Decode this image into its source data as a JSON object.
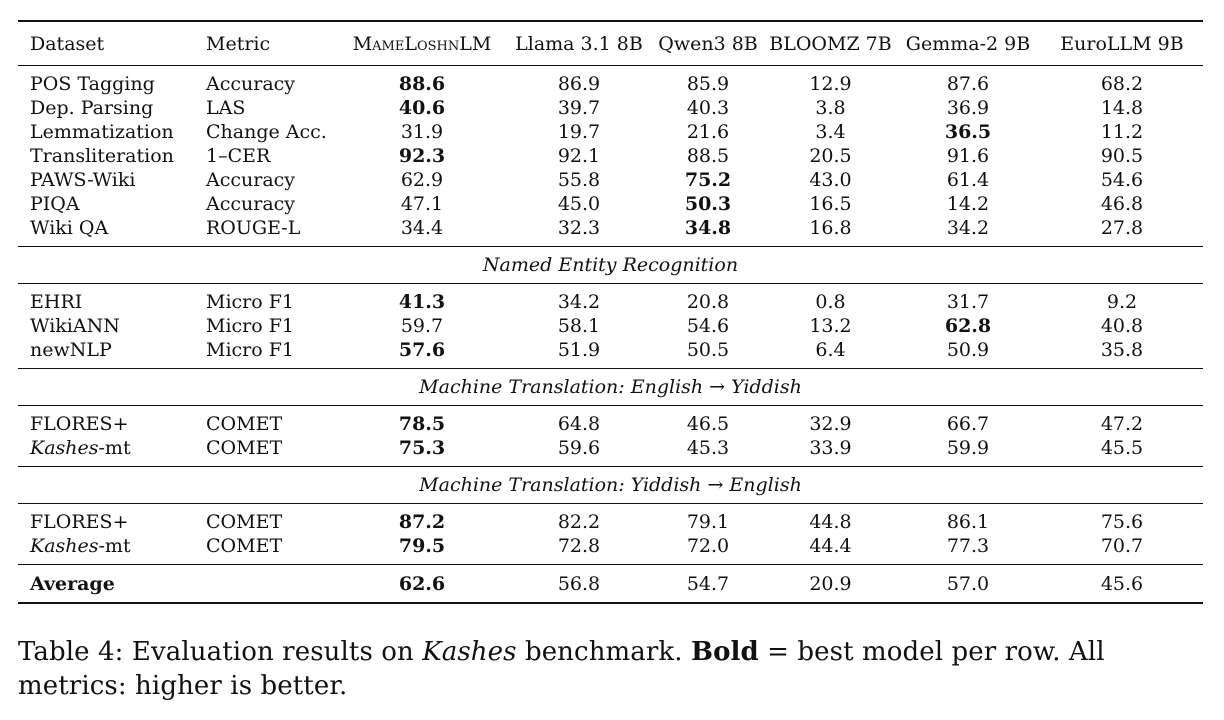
{
  "table": {
    "headers": [
      "Dataset",
      "Metric",
      "MameLoshnLM",
      "Llama 3.1 8B",
      "Qwen3 8B",
      "BLOOMZ 7B",
      "Gemma-2 9B",
      "EuroLLM 9B"
    ],
    "groups": [
      {
        "title": "",
        "rows": [
          {
            "dataset": "POS Tagging",
            "metric": "Accuracy",
            "values": [
              "88.6",
              "86.9",
              "85.9",
              "12.9",
              "87.6",
              "68.2"
            ],
            "best": 0
          },
          {
            "dataset": "Dep. Parsing",
            "metric": "LAS",
            "values": [
              "40.6",
              "39.7",
              "40.3",
              "3.8",
              "36.9",
              "14.8"
            ],
            "best": 0
          },
          {
            "dataset": "Lemmatization",
            "metric": "Change Acc.",
            "values": [
              "31.9",
              "19.7",
              "21.6",
              "3.4",
              "36.5",
              "11.2"
            ],
            "best": 4
          },
          {
            "dataset": "Transliteration",
            "metric": "1–CER",
            "values": [
              "92.3",
              "92.1",
              "88.5",
              "20.5",
              "91.6",
              "90.5"
            ],
            "best": 0
          },
          {
            "dataset": "PAWS-Wiki",
            "metric": "Accuracy",
            "values": [
              "62.9",
              "55.8",
              "75.2",
              "43.0",
              "61.4",
              "54.6"
            ],
            "best": 2
          },
          {
            "dataset": "PIQA",
            "metric": "Accuracy",
            "values": [
              "47.1",
              "45.0",
              "50.3",
              "16.5",
              "14.2",
              "46.8"
            ],
            "best": 2
          },
          {
            "dataset": "Wiki QA",
            "metric": "ROUGE-L",
            "values": [
              "34.4",
              "32.3",
              "34.8",
              "16.8",
              "34.2",
              "27.8"
            ],
            "best": 2
          }
        ]
      },
      {
        "title": "Named Entity Recognition",
        "rows": [
          {
            "dataset": "EHRI",
            "metric": "Micro F1",
            "values": [
              "41.3",
              "34.2",
              "20.8",
              "0.8",
              "31.7",
              "9.2"
            ],
            "best": 0
          },
          {
            "dataset": "WikiANN",
            "metric": "Micro F1",
            "values": [
              "59.7",
              "58.1",
              "54.6",
              "13.2",
              "62.8",
              "40.8"
            ],
            "best": 4
          },
          {
            "dataset": "newNLP",
            "metric": "Micro F1",
            "values": [
              "57.6",
              "51.9",
              "50.5",
              "6.4",
              "50.9",
              "35.8"
            ],
            "best": 0
          }
        ]
      },
      {
        "title": "Machine Translation: English → Yiddish",
        "rows": [
          {
            "dataset": "FLORES+",
            "metric": "COMET",
            "values": [
              "78.5",
              "64.8",
              "46.5",
              "32.9",
              "66.7",
              "47.2"
            ],
            "best": 0
          },
          {
            "dataset_italic": "Kashes",
            "dataset": "-mt",
            "metric": "COMET",
            "values": [
              "75.3",
              "59.6",
              "45.3",
              "33.9",
              "59.9",
              "45.5"
            ],
            "best": 0
          }
        ]
      },
      {
        "title": "Machine Translation: Yiddish → English",
        "rows": [
          {
            "dataset": "FLORES+",
            "metric": "COMET",
            "values": [
              "87.2",
              "82.2",
              "79.1",
              "44.8",
              "86.1",
              "75.6"
            ],
            "best": 0
          },
          {
            "dataset_italic": "Kashes",
            "dataset": "-mt",
            "metric": "COMET",
            "values": [
              "79.5",
              "72.8",
              "72.0",
              "44.4",
              "77.3",
              "70.7"
            ],
            "best": 0
          }
        ]
      }
    ],
    "average": {
      "label": "Average",
      "values": [
        "62.6",
        "56.8",
        "54.7",
        "20.9",
        "57.0",
        "45.6"
      ],
      "best": 0
    }
  },
  "caption": {
    "label": "Table 4:",
    "text1": "Evaluation results on",
    "italic": "Kashes",
    "text2": "benchmark.",
    "bold": "Bold",
    "text3": "= best model per row.  All metrics: higher is better."
  }
}
